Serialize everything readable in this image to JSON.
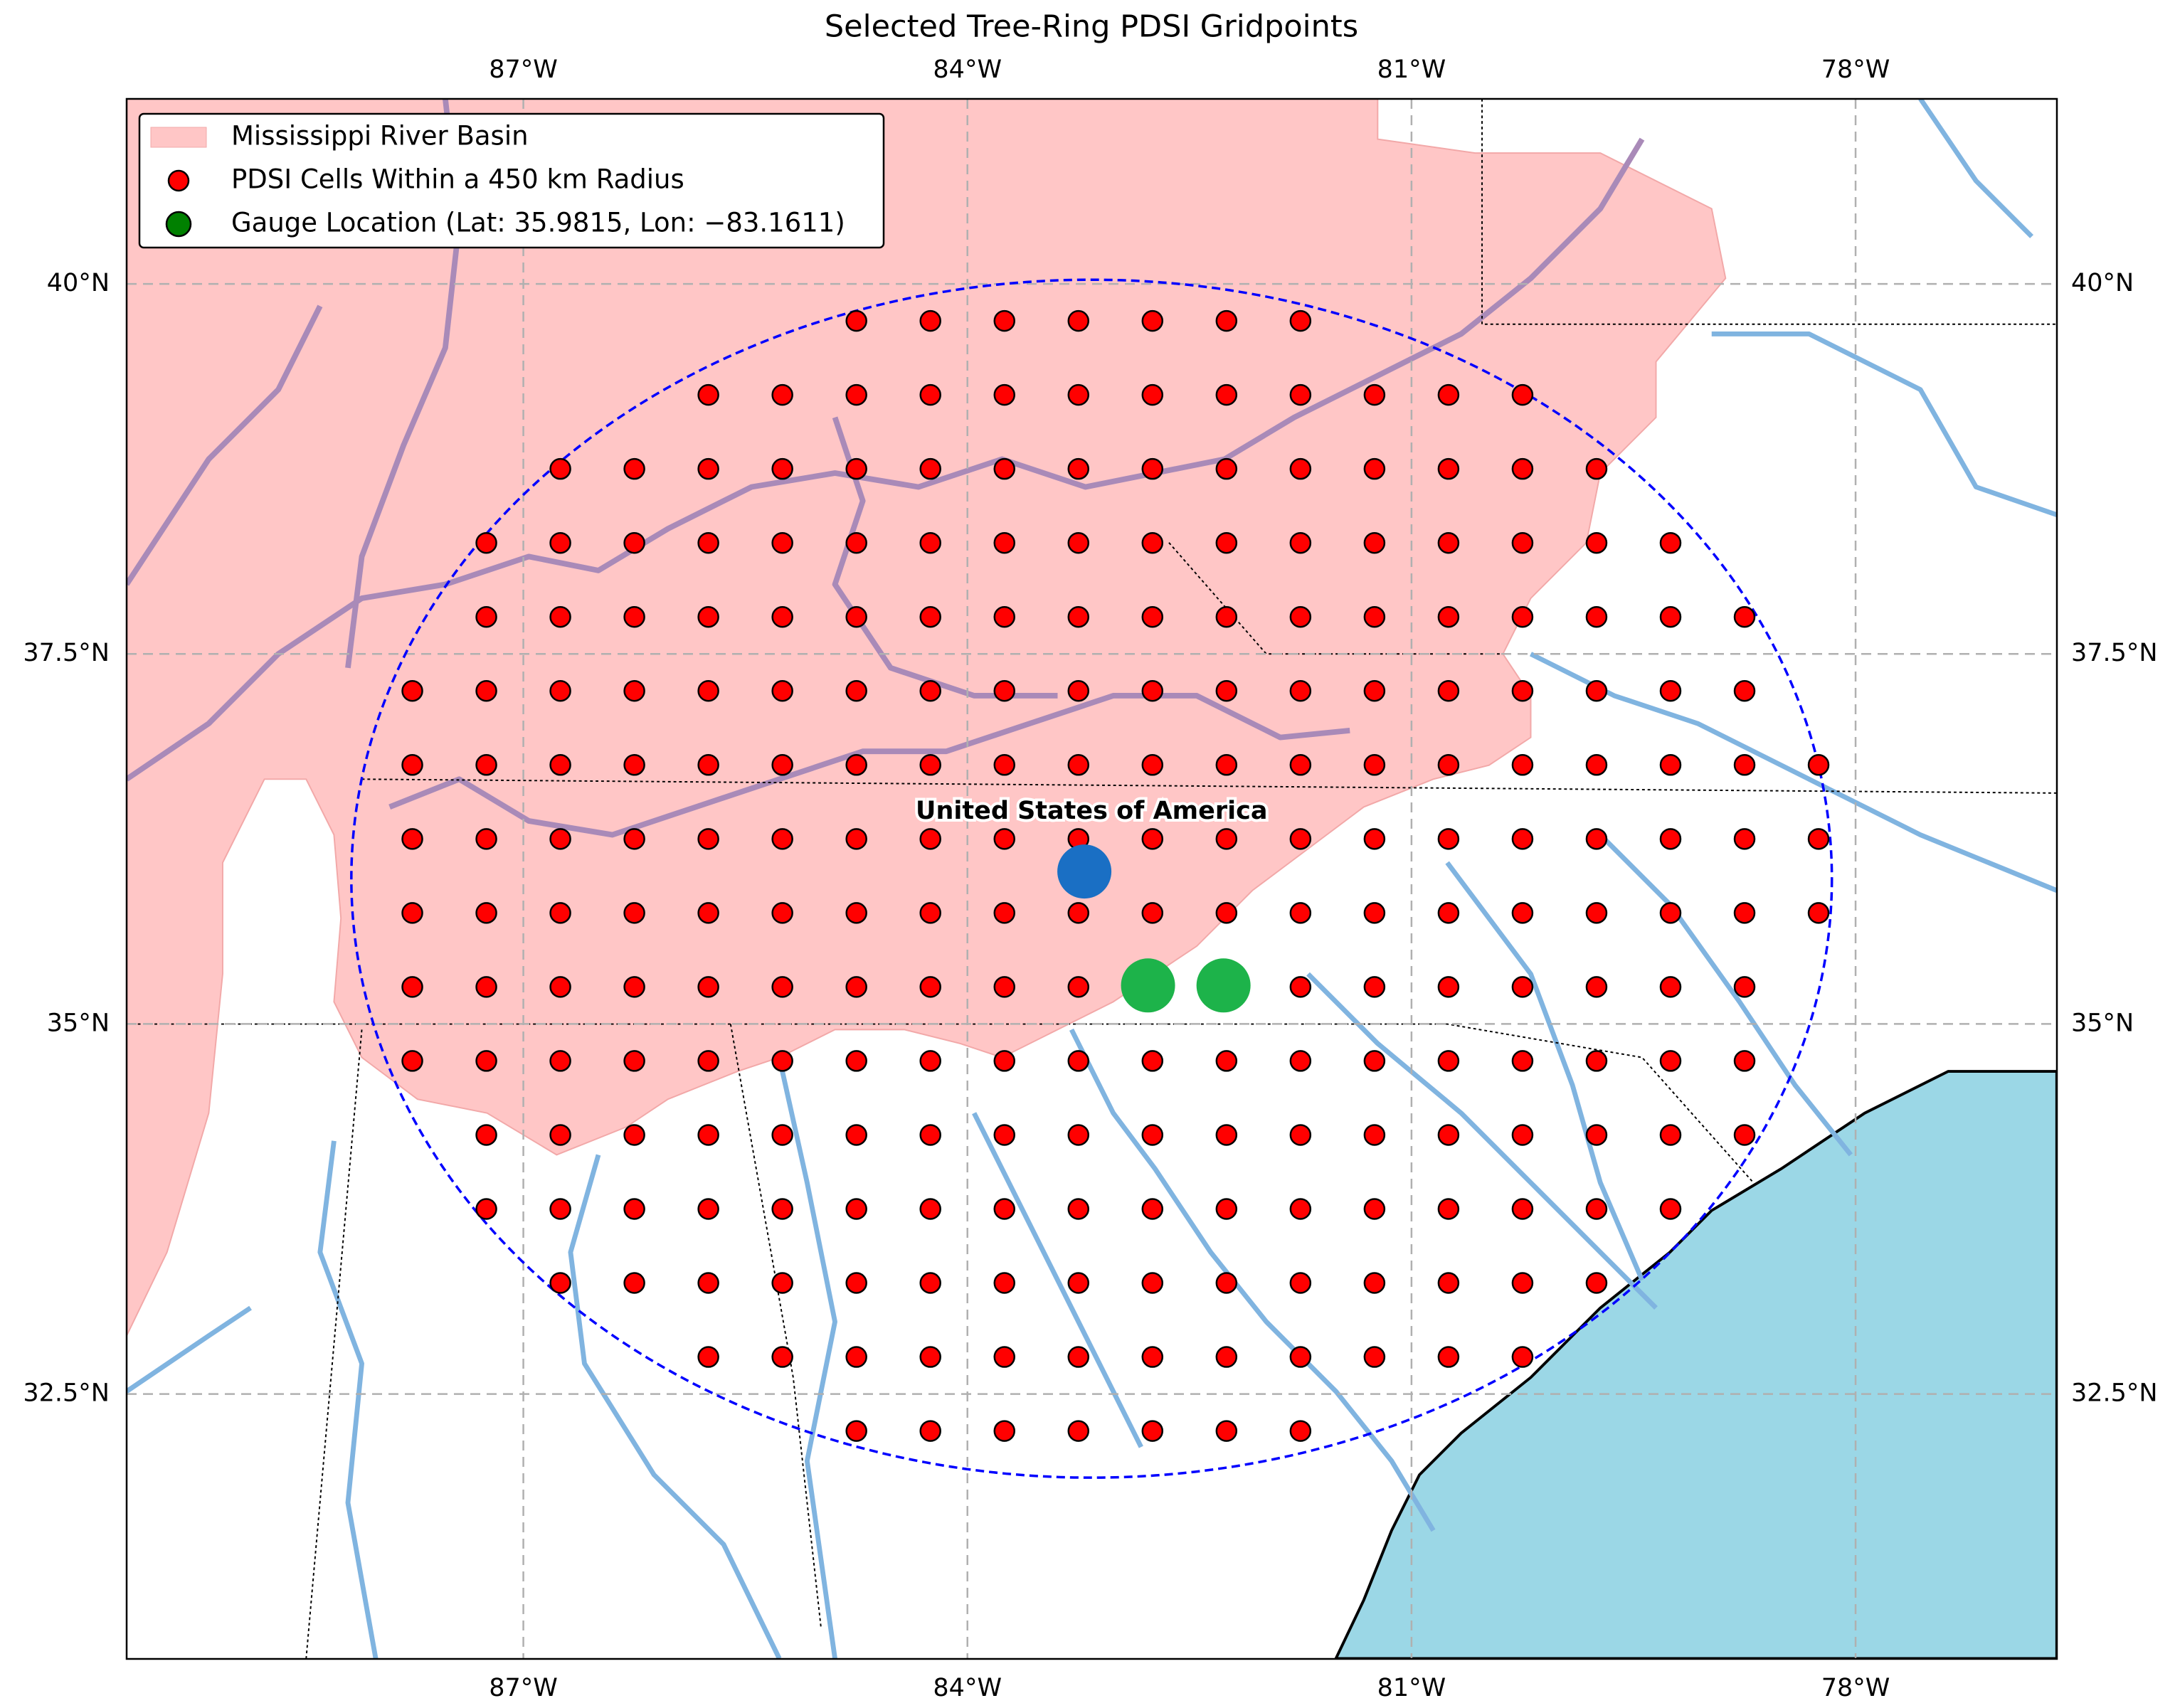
{
  "chart_data": {
    "type": "map",
    "title": "Selected Tree-Ring PDSI Gridpoints",
    "xlim": [
      -89.68,
      -76.64
    ],
    "ylim": [
      30.71,
      41.25
    ],
    "xticks": [
      {
        "value": -87,
        "label": "87°W"
      },
      {
        "value": -84,
        "label": "84°W"
      },
      {
        "value": -81,
        "label": "81°W"
      },
      {
        "value": -78,
        "label": "78°W"
      }
    ],
    "yticks": [
      {
        "value": 32.5,
        "label": "32.5°N"
      },
      {
        "value": 35,
        "label": "35°N"
      },
      {
        "value": 37.5,
        "label": "37.5°N"
      },
      {
        "value": 40,
        "label": "40°N"
      }
    ],
    "grid": true,
    "legend_loc": "upper left",
    "basin": {
      "name": "Mississippi River Basin",
      "color": "#ffc6c6"
    },
    "grid_cells": {
      "name": "PDSI Cells Within a 450 km Radius",
      "color": "#ff0000",
      "rows": [
        {
          "lat": 39.75,
          "lons": [
            -84.75,
            -84.25,
            -83.75,
            -83.25,
            -82.75,
            -82.25,
            -81.75
          ]
        },
        {
          "lat": 39.25,
          "lons": [
            -85.75,
            -85.25,
            -84.75,
            -84.25,
            -83.75,
            -83.25,
            -82.75,
            -82.25,
            -81.75,
            -81.25,
            -80.75,
            -80.25
          ]
        },
        {
          "lat": 38.75,
          "lons": [
            -86.75,
            -86.25,
            -85.75,
            -85.25,
            -84.75,
            -84.25,
            -83.75,
            -83.25,
            -82.75,
            -82.25,
            -81.75,
            -81.25,
            -80.75,
            -80.25,
            -79.75
          ]
        },
        {
          "lat": 38.25,
          "lons": [
            -87.25,
            -86.75,
            -86.25,
            -85.75,
            -85.25,
            -84.75,
            -84.25,
            -83.75,
            -83.25,
            -82.75,
            -82.25,
            -81.75,
            -81.25,
            -80.75,
            -80.25,
            -79.75,
            -79.25
          ]
        },
        {
          "lat": 37.75,
          "lons": [
            -87.25,
            -86.75,
            -86.25,
            -85.75,
            -85.25,
            -84.75,
            -84.25,
            -83.75,
            -83.25,
            -82.75,
            -82.25,
            -81.75,
            -81.25,
            -80.75,
            -80.25,
            -79.75,
            -79.25,
            -78.75
          ]
        },
        {
          "lat": 37.25,
          "lons": [
            -87.75,
            -87.25,
            -86.75,
            -86.25,
            -85.75,
            -85.25,
            -84.75,
            -84.25,
            -83.75,
            -83.25,
            -82.75,
            -82.25,
            -81.75,
            -81.25,
            -80.75,
            -80.25,
            -79.75,
            -79.25,
            -78.75
          ]
        },
        {
          "lat": 36.75,
          "lons": [
            -87.75,
            -87.25,
            -86.75,
            -86.25,
            -85.75,
            -85.25,
            -84.75,
            -84.25,
            -83.75,
            -83.25,
            -82.75,
            -82.25,
            -81.75,
            -81.25,
            -80.75,
            -80.25,
            -79.75,
            -79.25,
            -78.75,
            -78.25
          ]
        },
        {
          "lat": 36.25,
          "lons": [
            -87.75,
            -87.25,
            -86.75,
            -86.25,
            -85.75,
            -85.25,
            -84.75,
            -84.25,
            -83.75,
            -83.25,
            -82.75,
            -82.25,
            -81.75,
            -81.25,
            -80.75,
            -80.25,
            -79.75,
            -79.25,
            -78.75,
            -78.25
          ]
        },
        {
          "lat": 35.75,
          "lons": [
            -87.75,
            -87.25,
            -86.75,
            -86.25,
            -85.75,
            -85.25,
            -84.75,
            -84.25,
            -83.75,
            -83.25,
            -82.75,
            -82.25,
            -81.75,
            -81.25,
            -80.75,
            -80.25,
            -79.75,
            -79.25,
            -78.75,
            -78.25
          ]
        },
        {
          "lat": 35.25,
          "lons": [
            -87.75,
            -87.25,
            -86.75,
            -86.25,
            -85.75,
            -85.25,
            -84.75,
            -84.25,
            -83.75,
            -83.25,
            -82.75,
            -82.25,
            -81.75,
            -81.25,
            -80.75,
            -80.25,
            -79.75,
            -79.25,
            -78.75
          ]
        },
        {
          "lat": 34.75,
          "lons": [
            -87.75,
            -87.25,
            -86.75,
            -86.25,
            -85.75,
            -85.25,
            -84.75,
            -84.25,
            -83.75,
            -83.25,
            -82.75,
            -82.25,
            -81.75,
            -81.25,
            -80.75,
            -80.25,
            -79.75,
            -79.25,
            -78.75
          ]
        },
        {
          "lat": 34.25,
          "lons": [
            -87.25,
            -86.75,
            -86.25,
            -85.75,
            -85.25,
            -84.75,
            -84.25,
            -83.75,
            -83.25,
            -82.75,
            -82.25,
            -81.75,
            -81.25,
            -80.75,
            -80.25,
            -79.75,
            -79.25,
            -78.75
          ]
        },
        {
          "lat": 33.75,
          "lons": [
            -87.25,
            -86.75,
            -86.25,
            -85.75,
            -85.25,
            -84.75,
            -84.25,
            -83.75,
            -83.25,
            -82.75,
            -82.25,
            -81.75,
            -81.25,
            -80.75,
            -80.25,
            -79.75,
            -79.25
          ]
        },
        {
          "lat": 33.25,
          "lons": [
            -86.75,
            -86.25,
            -85.75,
            -85.25,
            -84.75,
            -84.25,
            -83.75,
            -83.25,
            -82.75,
            -82.25,
            -81.75,
            -81.25,
            -80.75,
            -80.25,
            -79.75
          ]
        },
        {
          "lat": 32.75,
          "lons": [
            -85.75,
            -85.25,
            -84.75,
            -84.25,
            -83.75,
            -83.25,
            -82.75,
            -82.25,
            -81.75,
            -81.25,
            -80.75,
            -80.25
          ]
        },
        {
          "lat": 32.25,
          "lons": [
            -84.75,
            -84.25,
            -83.75,
            -83.25,
            -82.75,
            -82.25,
            -81.75
          ]
        }
      ]
    },
    "gauge": {
      "name": "Gauge Location (Lat: 35.9815, Lon: −83.1611)",
      "color": "#008000"
    },
    "radius_circle": {
      "lat": 35.9815,
      "lon": -83.1611,
      "radius_km": 450,
      "color": "#0000ff"
    },
    "markers": [
      {
        "lat": 36.03,
        "lon": -83.21,
        "color": "#1a6fc4"
      },
      {
        "lat": 35.26,
        "lon": -82.78,
        "color": "#1db34a"
      },
      {
        "lat": 35.26,
        "lon": -82.27,
        "color": "#1db34a"
      }
    ],
    "annotation": "United States of America"
  }
}
